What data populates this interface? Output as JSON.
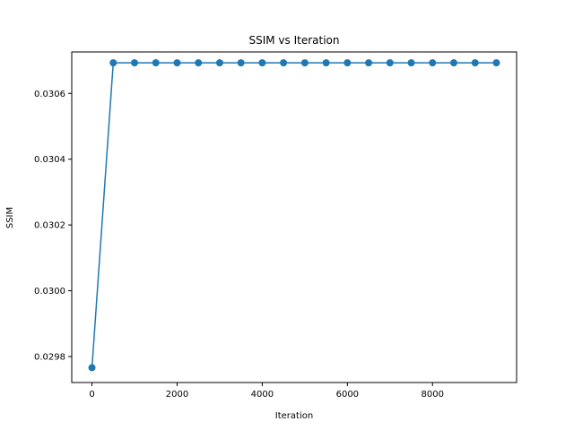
{
  "chart_data": {
    "type": "line",
    "title": "SSIM vs Iteration",
    "xlabel": "Iteration",
    "ylabel": "SSIM",
    "xlim": [
      -475,
      9975
    ],
    "ylim": [
      0.029721,
      0.030726
    ],
    "xticks": [
      0,
      2000,
      4000,
      6000,
      8000
    ],
    "xtick_labels": [
      "0",
      "2000",
      "4000",
      "6000",
      "8000"
    ],
    "yticks": [
      0.0298,
      0.03,
      0.0302,
      0.0304,
      0.0306
    ],
    "ytick_labels": [
      "0.0298",
      "0.0300",
      "0.0302",
      "0.0304",
      "0.0306"
    ],
    "grid": false,
    "series": [
      {
        "color": "#1f77b4",
        "marker": "circle",
        "x": [
          0,
          500,
          1000,
          1500,
          2000,
          2500,
          3000,
          3500,
          4000,
          4500,
          5000,
          5500,
          6000,
          6500,
          7000,
          7500,
          8000,
          8500,
          9000,
          9500
        ],
        "y": [
          0.029766,
          0.030693,
          0.030693,
          0.030693,
          0.030693,
          0.030693,
          0.030693,
          0.030693,
          0.030693,
          0.030693,
          0.030693,
          0.030693,
          0.030693,
          0.030693,
          0.030693,
          0.030693,
          0.030693,
          0.030693,
          0.030693,
          0.030693
        ]
      }
    ]
  }
}
